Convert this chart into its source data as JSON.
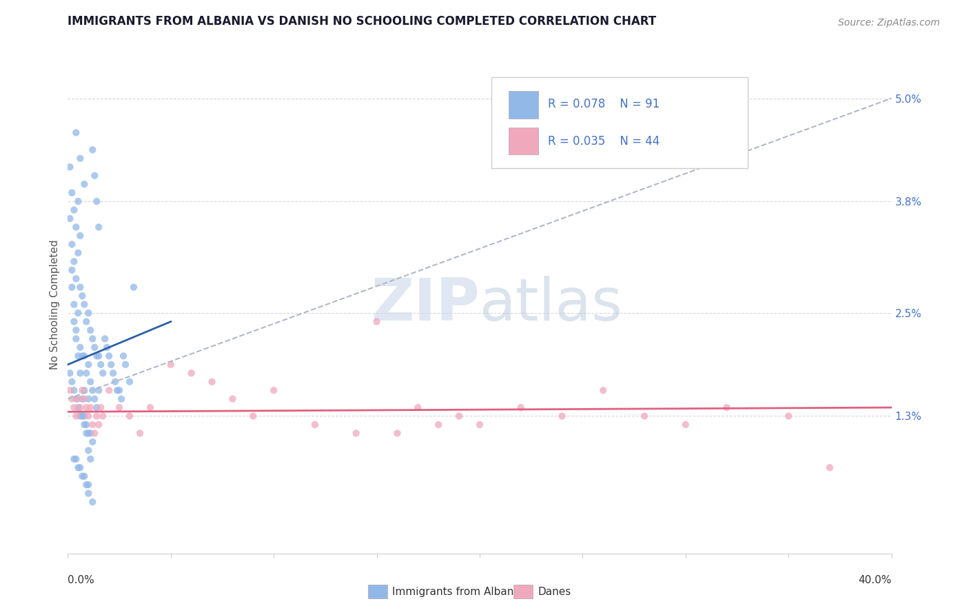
{
  "title": "IMMIGRANTS FROM ALBANIA VS DANISH NO SCHOOLING COMPLETED CORRELATION CHART",
  "source_text": "Source: ZipAtlas.com",
  "ylabel": "No Schooling Completed",
  "legend_label_1": "Immigrants from Albania",
  "legend_label_2": "Danes",
  "r1": 0.078,
  "n1": 91,
  "r2": 0.035,
  "n2": 44,
  "color_blue": "#92b8e8",
  "color_pink": "#f0a8bc",
  "color_trend_blue": "#2c5fa8",
  "color_trend_gray": "#b0b8c8",
  "color_trend_pink": "#e06080",
  "xlim": [
    0.0,
    0.4
  ],
  "ylim": [
    -0.003,
    0.055
  ],
  "xtick_left_label": "0.0%",
  "xtick_right_label": "40.0%",
  "yticks": [
    0.013,
    0.025,
    0.038,
    0.05
  ],
  "ytick_labels": [
    "1.3%",
    "2.5%",
    "3.8%",
    "5.0%"
  ],
  "watermark_zip": "ZIP",
  "watermark_atlas": "atlas",
  "title_color": "#1a1a2e",
  "source_color": "#888888",
  "ytick_color": "#4472c4",
  "grid_color": "#d8d8d8",
  "spine_color": "#cccccc",
  "blue_x": [
    0.001,
    0.001,
    0.002,
    0.002,
    0.002,
    0.003,
    0.003,
    0.003,
    0.004,
    0.004,
    0.004,
    0.005,
    0.005,
    0.005,
    0.006,
    0.006,
    0.006,
    0.007,
    0.007,
    0.008,
    0.008,
    0.008,
    0.009,
    0.009,
    0.01,
    0.01,
    0.01,
    0.011,
    0.011,
    0.012,
    0.012,
    0.013,
    0.013,
    0.014,
    0.014,
    0.015,
    0.015,
    0.016,
    0.017,
    0.018,
    0.019,
    0.02,
    0.021,
    0.022,
    0.023,
    0.024,
    0.025,
    0.026,
    0.027,
    0.028,
    0.03,
    0.032,
    0.001,
    0.002,
    0.003,
    0.004,
    0.005,
    0.006,
    0.007,
    0.008,
    0.009,
    0.01,
    0.011,
    0.012,
    0.003,
    0.004,
    0.005,
    0.006,
    0.007,
    0.008,
    0.009,
    0.01,
    0.002,
    0.003,
    0.004,
    0.005,
    0.006,
    0.007,
    0.008,
    0.009,
    0.01,
    0.011,
    0.012,
    0.013,
    0.014,
    0.015,
    0.004,
    0.006,
    0.008,
    0.01,
    0.012
  ],
  "blue_y": [
    0.042,
    0.036,
    0.039,
    0.033,
    0.028,
    0.037,
    0.031,
    0.024,
    0.035,
    0.029,
    0.022,
    0.038,
    0.032,
    0.025,
    0.034,
    0.028,
    0.021,
    0.027,
    0.02,
    0.026,
    0.02,
    0.016,
    0.024,
    0.018,
    0.025,
    0.019,
    0.015,
    0.023,
    0.017,
    0.022,
    0.016,
    0.021,
    0.015,
    0.02,
    0.014,
    0.02,
    0.016,
    0.019,
    0.018,
    0.022,
    0.021,
    0.02,
    0.019,
    0.018,
    0.017,
    0.016,
    0.016,
    0.015,
    0.02,
    0.019,
    0.017,
    0.028,
    0.018,
    0.017,
    0.016,
    0.015,
    0.014,
    0.013,
    0.013,
    0.012,
    0.012,
    0.011,
    0.011,
    0.01,
    0.008,
    0.008,
    0.007,
    0.007,
    0.006,
    0.006,
    0.005,
    0.005,
    0.03,
    0.026,
    0.023,
    0.02,
    0.018,
    0.015,
    0.013,
    0.011,
    0.009,
    0.008,
    0.044,
    0.041,
    0.038,
    0.035,
    0.046,
    0.043,
    0.04,
    0.004,
    0.003
  ],
  "pink_x": [
    0.001,
    0.002,
    0.003,
    0.004,
    0.005,
    0.006,
    0.007,
    0.008,
    0.009,
    0.01,
    0.011,
    0.012,
    0.013,
    0.014,
    0.015,
    0.016,
    0.017,
    0.02,
    0.025,
    0.03,
    0.035,
    0.04,
    0.05,
    0.06,
    0.07,
    0.08,
    0.09,
    0.1,
    0.12,
    0.14,
    0.15,
    0.17,
    0.19,
    0.2,
    0.22,
    0.24,
    0.26,
    0.28,
    0.3,
    0.32,
    0.16,
    0.18,
    0.35,
    0.37
  ],
  "pink_y": [
    0.016,
    0.015,
    0.014,
    0.013,
    0.015,
    0.014,
    0.016,
    0.015,
    0.014,
    0.013,
    0.014,
    0.012,
    0.011,
    0.013,
    0.012,
    0.014,
    0.013,
    0.016,
    0.014,
    0.013,
    0.011,
    0.014,
    0.019,
    0.018,
    0.017,
    0.015,
    0.013,
    0.016,
    0.012,
    0.011,
    0.024,
    0.014,
    0.013,
    0.012,
    0.014,
    0.013,
    0.016,
    0.013,
    0.012,
    0.014,
    0.011,
    0.012,
    0.013,
    0.007
  ],
  "blue_trend_x0": 0.0,
  "blue_trend_x1": 0.05,
  "blue_trend_y0": 0.019,
  "blue_trend_y1": 0.024,
  "gray_trend_x0": 0.0,
  "gray_trend_x1": 0.4,
  "gray_trend_y0": 0.015,
  "gray_trend_y1": 0.05,
  "pink_trend_x0": 0.0,
  "pink_trend_x1": 0.4,
  "pink_trend_y0": 0.0135,
  "pink_trend_y1": 0.014
}
